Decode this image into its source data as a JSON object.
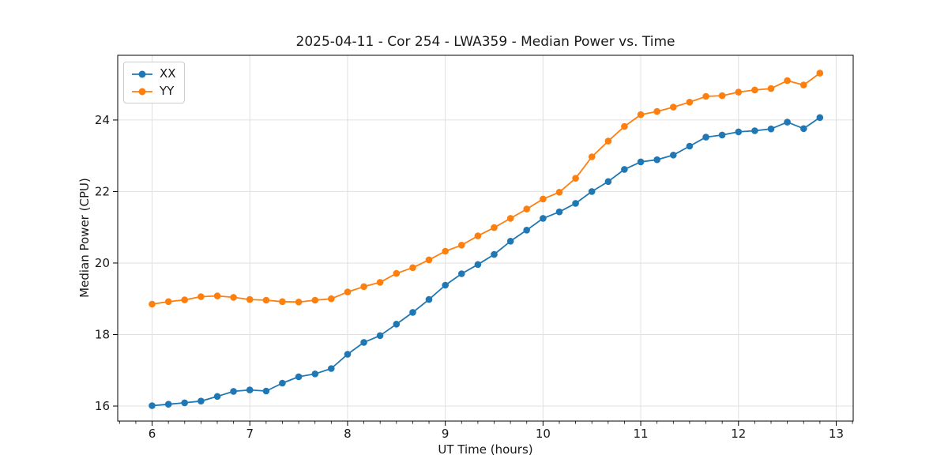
{
  "chart_data": {
    "type": "line",
    "title": "2025-04-11 - Cor 254 - LWA359 - Median Power vs. Time",
    "xlabel": "UT Time (hours)",
    "ylabel": "Median Power (CPU)",
    "x": [
      6.0,
      6.167,
      6.333,
      6.5,
      6.667,
      6.833,
      7.0,
      7.167,
      7.333,
      7.5,
      7.667,
      7.833,
      8.0,
      8.167,
      8.333,
      8.5,
      8.667,
      8.833,
      9.0,
      9.167,
      9.333,
      9.5,
      9.667,
      9.833,
      10.0,
      10.167,
      10.333,
      10.5,
      10.667,
      10.833,
      11.0,
      11.167,
      11.333,
      11.5,
      11.667,
      11.833,
      12.0,
      12.167,
      12.333,
      12.5,
      12.667,
      12.833
    ],
    "series": [
      {
        "name": "XX",
        "color": "#1f77b4",
        "values": [
          16.01,
          16.05,
          16.09,
          16.14,
          16.27,
          16.41,
          16.45,
          16.42,
          16.64,
          16.82,
          16.9,
          17.05,
          17.45,
          17.78,
          17.97,
          18.29,
          18.62,
          18.98,
          19.38,
          19.7,
          19.96,
          20.24,
          20.61,
          20.92,
          21.25,
          21.43,
          21.67,
          22.0,
          22.28,
          22.62,
          22.83,
          22.89,
          23.02,
          23.27,
          23.52,
          23.58,
          23.67,
          23.7,
          23.75,
          23.94,
          23.76,
          24.07
        ]
      },
      {
        "name": "YY",
        "color": "#ff7f0e",
        "values": [
          18.85,
          18.92,
          18.97,
          19.06,
          19.08,
          19.04,
          18.98,
          18.96,
          18.92,
          18.91,
          18.96,
          19.0,
          19.19,
          19.34,
          19.46,
          19.71,
          19.87,
          20.09,
          20.33,
          20.5,
          20.76,
          20.99,
          21.25,
          21.51,
          21.79,
          21.98,
          22.37,
          22.97,
          23.41,
          23.82,
          24.15,
          24.24,
          24.36,
          24.5,
          24.66,
          24.68,
          24.78,
          24.84,
          24.88,
          25.1,
          24.98,
          25.31
        ]
      }
    ],
    "xticks": [
      6,
      7,
      8,
      9,
      10,
      11,
      12,
      13
    ],
    "yticks": [
      16,
      18,
      20,
      22,
      24
    ],
    "xlim": [
      5.648,
      13.174
    ],
    "ylim": [
      15.58,
      25.81
    ],
    "x_minor_interval": 0.1666667,
    "grid": true,
    "legend_position": "upper left",
    "colors": {
      "grid": "#e0e0e0",
      "spine": "#000000",
      "text": "#191919"
    }
  }
}
